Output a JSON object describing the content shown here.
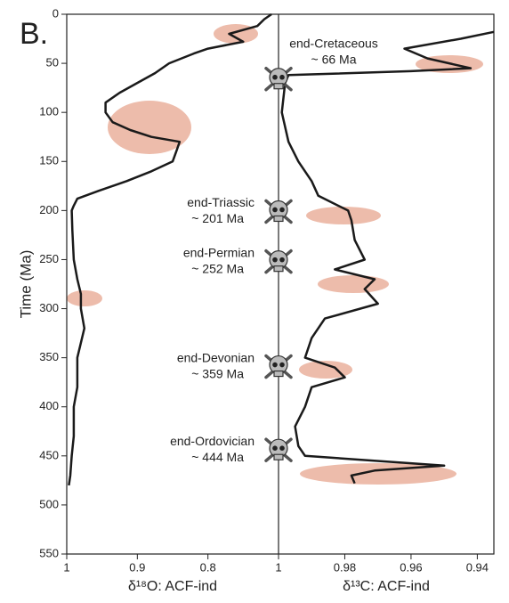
{
  "panel_label": "B.",
  "chart_data": [
    {
      "type": "line",
      "ylabel": "Time (Ma)",
      "xlabel": "δ¹⁸O: ACF-ind",
      "xlim": [
        1,
        0.7
      ],
      "xticks": [
        1,
        0.9,
        0.8
      ],
      "ylim": [
        0,
        550
      ],
      "yticks": [
        0,
        50,
        100,
        150,
        200,
        250,
        300,
        350,
        400,
        450,
        500,
        550
      ],
      "color": "#1a1a1a",
      "y": [
        0,
        5,
        12,
        20,
        28,
        35,
        40,
        50,
        60,
        70,
        80,
        90,
        100,
        110,
        118,
        125,
        130,
        140,
        150,
        160,
        170,
        180,
        188,
        195,
        200,
        220,
        250,
        270,
        285,
        300,
        320,
        350,
        380,
        400,
        430,
        450,
        470,
        480
      ],
      "values": [
        0.71,
        0.72,
        0.73,
        0.77,
        0.75,
        0.8,
        0.82,
        0.855,
        0.875,
        0.9,
        0.925,
        0.945,
        0.945,
        0.935,
        0.91,
        0.88,
        0.84,
        0.845,
        0.85,
        0.88,
        0.915,
        0.955,
        0.985,
        0.99,
        0.993,
        0.992,
        0.99,
        0.985,
        0.98,
        0.98,
        0.975,
        0.985,
        0.985,
        0.99,
        0.99,
        0.993,
        0.995,
        0.997
      ]
    },
    {
      "type": "line",
      "xlabel": "δ¹³C: ACF-ind",
      "xlim": [
        1,
        0.935
      ],
      "xticks": [
        1,
        0.98,
        0.96,
        0.94
      ],
      "ylim": [
        0,
        550
      ],
      "color": "#1a1a1a",
      "y": [
        18,
        25,
        35,
        45,
        55,
        58,
        62,
        70,
        100,
        130,
        150,
        170,
        185,
        200,
        210,
        230,
        250,
        260,
        270,
        280,
        295,
        310,
        330,
        350,
        360,
        370,
        380,
        400,
        420,
        440,
        450,
        460,
        465,
        470,
        478
      ],
      "values": [
        0.935,
        0.945,
        0.962,
        0.955,
        0.942,
        0.96,
        0.997,
        0.998,
        0.999,
        0.997,
        0.994,
        0.99,
        0.988,
        0.979,
        0.978,
        0.977,
        0.974,
        0.983,
        0.971,
        0.974,
        0.97,
        0.986,
        0.99,
        0.992,
        0.983,
        0.98,
        0.99,
        0.992,
        0.995,
        0.994,
        0.992,
        0.95,
        0.971,
        0.978,
        0.977
      ]
    }
  ],
  "annotations": [
    {
      "name": "end-Cretaceous",
      "label": "~ 66 Ma",
      "value": 66
    },
    {
      "name": "end-Triassic",
      "label": "~ 201 Ma",
      "value": 201
    },
    {
      "name": "end-Permian",
      "label": "~ 252 Ma",
      "value": 252
    },
    {
      "name": "end-Devonian",
      "label": "~ 359 Ma",
      "value": 359
    },
    {
      "name": "end-Ordovician",
      "label": "~ 444 Ma",
      "value": 444
    }
  ]
}
